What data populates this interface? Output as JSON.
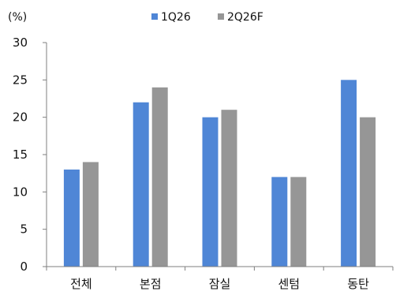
{
  "chart_data": {
    "type": "bar",
    "unit_label": "(%)",
    "categories": [
      "전체",
      "본점",
      "잠실",
      "센텀",
      "동탄"
    ],
    "series": [
      {
        "name": "1Q26",
        "color": "#4f86d6",
        "values": [
          13,
          22,
          20,
          12,
          25
        ]
      },
      {
        "name": "2Q26F",
        "color": "#969696",
        "values": [
          14,
          24,
          21,
          12,
          20
        ]
      }
    ],
    "ylim": [
      0,
      30
    ],
    "yticks": [
      "0",
      "5",
      "10",
      "15",
      "20",
      "25",
      "30"
    ],
    "grid": false,
    "legend_position": "top-right"
  }
}
